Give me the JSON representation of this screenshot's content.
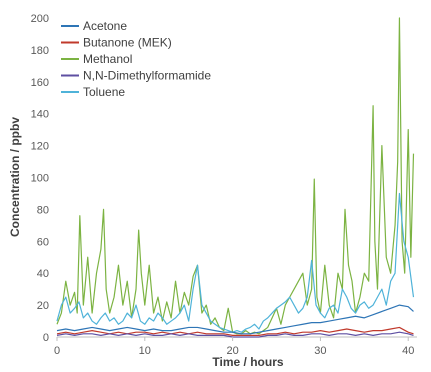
{
  "chart_data": {
    "type": "line",
    "title": "",
    "xlabel": "Time / hours",
    "ylabel": "Concentration / ppbv",
    "xlim": [
      0,
      41
    ],
    "ylim": [
      0,
      200
    ],
    "x_ticks": [
      0,
      10,
      20,
      30,
      40
    ],
    "y_ticks": [
      0,
      20,
      40,
      60,
      80,
      100,
      120,
      140,
      160,
      180,
      200
    ],
    "grid": false,
    "legend_position": "top-left",
    "series": [
      {
        "name": "Acetone",
        "color": "#2e75b6",
        "x": [
          0,
          1,
          2,
          3,
          4,
          5,
          6,
          7,
          8,
          9,
          10,
          11,
          12,
          13,
          14,
          15,
          16,
          17,
          18,
          19,
          20,
          21,
          22,
          23,
          24,
          25,
          26,
          27,
          28,
          29,
          30,
          31,
          32,
          33,
          34,
          35,
          36,
          37,
          38,
          39,
          40,
          40.6
        ],
        "y": [
          4,
          5,
          4,
          5,
          6,
          5,
          4,
          5,
          6,
          5,
          4,
          5,
          4,
          4,
          5,
          6,
          6,
          5,
          4,
          3,
          3,
          2,
          2,
          3,
          4,
          5,
          6,
          7,
          8,
          9,
          9,
          10,
          11,
          12,
          13,
          12,
          14,
          16,
          18,
          20,
          19,
          16
        ]
      },
      {
        "name": "Butanone (MEK)",
        "color": "#c0392b",
        "x": [
          0,
          1,
          2,
          3,
          4,
          5,
          6,
          7,
          8,
          9,
          10,
          11,
          12,
          13,
          14,
          15,
          16,
          17,
          18,
          19,
          20,
          21,
          22,
          23,
          24,
          25,
          26,
          27,
          28,
          29,
          30,
          31,
          32,
          33,
          34,
          35,
          36,
          37,
          38,
          39,
          40,
          40.6
        ],
        "y": [
          2,
          3,
          2,
          3,
          4,
          3,
          2,
          3,
          2,
          3,
          3,
          2,
          3,
          2,
          3,
          2,
          3,
          2,
          2,
          2,
          1,
          1,
          1,
          1,
          2,
          2,
          3,
          2,
          3,
          3,
          4,
          3,
          4,
          5,
          4,
          3,
          4,
          4,
          5,
          6,
          3,
          2
        ]
      },
      {
        "name": "Methanol",
        "color": "#7cb342",
        "x": [
          0,
          0.5,
          1,
          1.5,
          2,
          2.3,
          2.6,
          3,
          3.5,
          4,
          4.5,
          5,
          5.3,
          5.6,
          6,
          6.5,
          7,
          7.5,
          8,
          8.5,
          9,
          9.3,
          9.6,
          10,
          10.5,
          11,
          11.5,
          12,
          12.5,
          13,
          13.5,
          14,
          14.5,
          15,
          15.5,
          16,
          16.5,
          17,
          17.5,
          18,
          18.5,
          19,
          19.5,
          20,
          20.5,
          21,
          21.5,
          22,
          22.5,
          23,
          23.5,
          24,
          24.5,
          25,
          25.5,
          26,
          26.5,
          27,
          27.5,
          28,
          28.5,
          29,
          29.3,
          29.6,
          30,
          30.5,
          31,
          31.5,
          32,
          32.5,
          32.8,
          33.2,
          33.6,
          34,
          34.5,
          35,
          35.5,
          36,
          36.2,
          36.5,
          37,
          37.5,
          38,
          38.5,
          38.8,
          39,
          39.3,
          39.6,
          40,
          40.3,
          40.6
        ],
        "y": [
          8,
          15,
          35,
          20,
          28,
          15,
          76,
          20,
          50,
          15,
          40,
          55,
          80,
          30,
          15,
          25,
          45,
          20,
          35,
          12,
          30,
          67,
          40,
          20,
          45,
          15,
          25,
          10,
          22,
          12,
          35,
          15,
          28,
          20,
          38,
          45,
          15,
          20,
          8,
          12,
          6,
          4,
          18,
          3,
          2,
          2,
          4,
          2,
          3,
          2,
          4,
          6,
          12,
          18,
          8,
          20,
          25,
          30,
          35,
          40,
          20,
          30,
          99,
          25,
          15,
          45,
          20,
          12,
          40,
          30,
          80,
          45,
          35,
          15,
          25,
          40,
          35,
          145,
          60,
          30,
          120,
          50,
          40,
          70,
          110,
          200,
          60,
          40,
          130,
          50,
          115
        ]
      },
      {
        "name": "N,N-Dimethylformamide",
        "color": "#5e4fa2",
        "x": [
          0,
          1,
          2,
          3,
          4,
          5,
          6,
          7,
          8,
          9,
          10,
          11,
          12,
          13,
          14,
          15,
          16,
          17,
          18,
          19,
          20,
          21,
          22,
          23,
          24,
          25,
          26,
          27,
          28,
          29,
          30,
          31,
          32,
          33,
          34,
          35,
          36,
          37,
          38,
          39,
          40,
          40.6
        ],
        "y": [
          1,
          2,
          1,
          2,
          2,
          1,
          2,
          1,
          2,
          1,
          2,
          1,
          1,
          2,
          1,
          2,
          1,
          1,
          1,
          1,
          0,
          0,
          0,
          0,
          1,
          1,
          2,
          1,
          1,
          2,
          2,
          1,
          2,
          2,
          1,
          2,
          1,
          2,
          2,
          3,
          2,
          1
        ]
      },
      {
        "name": "Toluene",
        "color": "#4fb3d9",
        "x": [
          0,
          0.5,
          1,
          1.5,
          2,
          2.5,
          3,
          3.5,
          4,
          4.5,
          5,
          5.5,
          6,
          6.5,
          7,
          7.5,
          8,
          8.5,
          9,
          9.5,
          10,
          10.5,
          11,
          11.5,
          12,
          12.5,
          13,
          13.5,
          14,
          14.5,
          15,
          15.5,
          16,
          16.5,
          17,
          17.5,
          18,
          18.5,
          19,
          19.5,
          20,
          20.5,
          21,
          21.5,
          22,
          22.5,
          23,
          23.5,
          24,
          24.5,
          25,
          25.5,
          26,
          26.5,
          27,
          27.5,
          28,
          28.5,
          29,
          29.5,
          30,
          30.5,
          31,
          31.5,
          32,
          32.5,
          33,
          33.5,
          34,
          34.5,
          35,
          35.5,
          36,
          36.5,
          37,
          37.5,
          38,
          38.5,
          39,
          39.5,
          40,
          40.6
        ],
        "y": [
          10,
          20,
          25,
          15,
          18,
          22,
          12,
          15,
          10,
          8,
          12,
          15,
          10,
          12,
          8,
          10,
          15,
          12,
          20,
          10,
          8,
          12,
          10,
          15,
          12,
          8,
          10,
          12,
          15,
          20,
          10,
          30,
          45,
          20,
          15,
          10,
          8,
          6,
          5,
          4,
          3,
          4,
          3,
          5,
          6,
          8,
          5,
          10,
          12,
          15,
          18,
          20,
          22,
          25,
          20,
          15,
          18,
          25,
          48,
          20,
          15,
          12,
          18,
          20,
          15,
          30,
          25,
          18,
          15,
          20,
          22,
          18,
          20,
          25,
          30,
          20,
          35,
          40,
          90,
          60,
          50,
          25
        ]
      }
    ]
  }
}
